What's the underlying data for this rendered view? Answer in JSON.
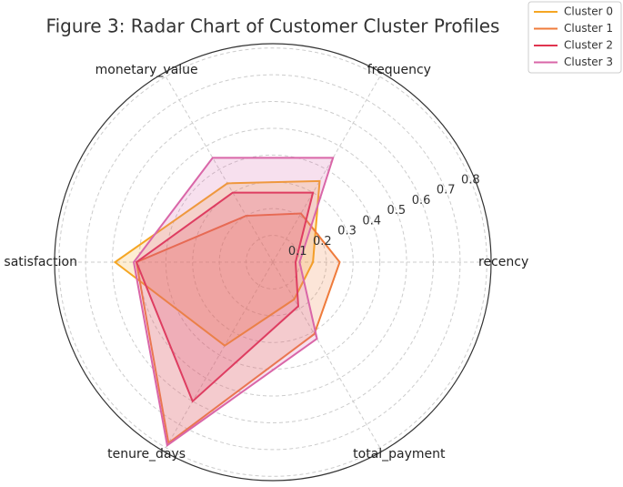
{
  "chart_data": {
    "type": "radar",
    "title": "Figure 3: Radar Chart of Customer Cluster Profiles",
    "categories": [
      "recency",
      "frequency",
      "monetary_value",
      "satisfaction",
      "tenure_days",
      "total_payment"
    ],
    "series": [
      {
        "name": "Cluster 0",
        "color": "#f5a623",
        "values": [
          0.15,
          0.35,
          0.34,
          0.59,
          0.36,
          0.16
        ]
      },
      {
        "name": "Cluster 1",
        "color": "#ef7b3b",
        "values": [
          0.25,
          0.21,
          0.2,
          0.51,
          0.78,
          0.31
        ]
      },
      {
        "name": "Cluster 2",
        "color": "#e0344f",
        "values": [
          0.085,
          0.3,
          0.3,
          0.51,
          0.6,
          0.19
        ]
      },
      {
        "name": "Cluster 3",
        "color": "#d966a8",
        "values": [
          0.1,
          0.45,
          0.45,
          0.52,
          0.79,
          0.33
        ]
      }
    ],
    "rlim": [
      0,
      0.816
    ],
    "rticks": [
      0.1,
      0.2,
      0.3,
      0.4,
      0.5,
      0.6,
      0.7,
      0.8
    ],
    "grid": true,
    "legend": "upper-right"
  }
}
